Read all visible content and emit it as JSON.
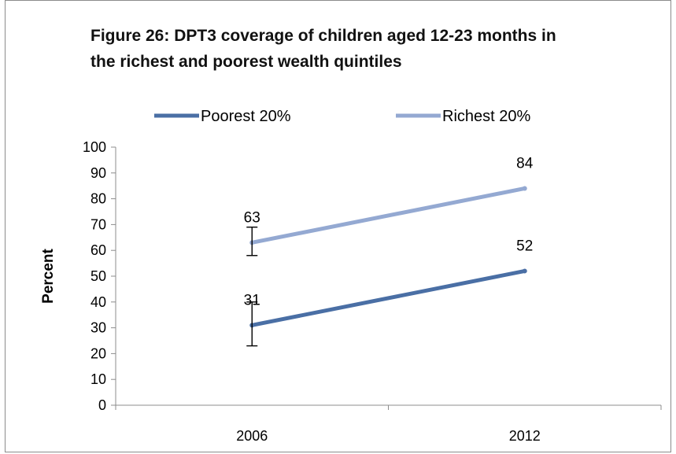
{
  "chart_data": {
    "type": "line",
    "title_lines": [
      "Figure 26: DPT3 coverage of children aged 12-23 months in",
      "the richest and poorest wealth quintiles"
    ],
    "xlabel": "",
    "ylabel": "Percent",
    "categories": [
      "2006",
      "2012"
    ],
    "ylim": [
      0,
      100
    ],
    "yticks": [
      0,
      10,
      20,
      30,
      40,
      50,
      60,
      70,
      80,
      90,
      100
    ],
    "legend_position": "top",
    "grid": false,
    "series": [
      {
        "name": "Poorest 20%",
        "values": [
          31,
          52
        ],
        "data_labels": [
          "31",
          "52"
        ],
        "color": "#4a6fa5",
        "error_bars": [
          [
            23,
            40
          ],
          null
        ]
      },
      {
        "name": "Richest 20%",
        "values": [
          63,
          84
        ],
        "data_labels": [
          "63",
          "84"
        ],
        "color": "#94a9d2",
        "error_bars": [
          [
            58,
            69
          ],
          null
        ]
      }
    ]
  }
}
